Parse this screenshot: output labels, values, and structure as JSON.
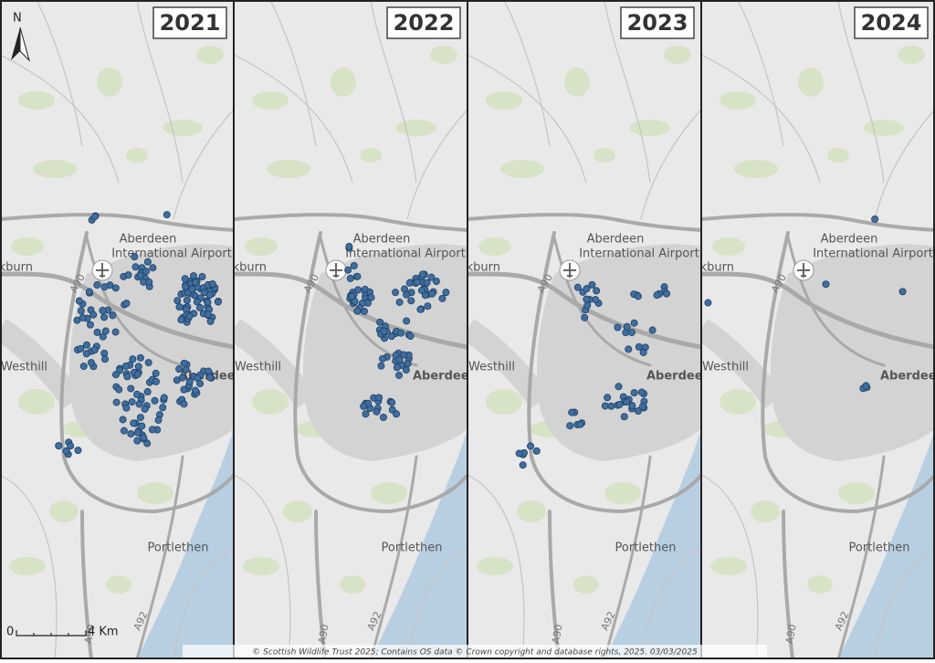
{
  "north": "N",
  "panels": [
    {
      "year": "2021"
    },
    {
      "year": "2022"
    },
    {
      "year": "2023"
    },
    {
      "year": "2024"
    }
  ],
  "places": {
    "airport_line1": "Aberdeen",
    "airport_line2": "International Airport",
    "blackburn": "Blackburn",
    "westhill": "Westhill",
    "city": "Aberdeen",
    "portlethen": "Portlethen"
  },
  "roads": {
    "a90": "A90",
    "a92": "A92"
  },
  "scale": {
    "start": "0",
    "end": "4 Km"
  },
  "attribution": "© Scottish Wildlife Trust 2025; Contains OS data © Crown copyright and database rights, 2025.  03/03/2025"
}
